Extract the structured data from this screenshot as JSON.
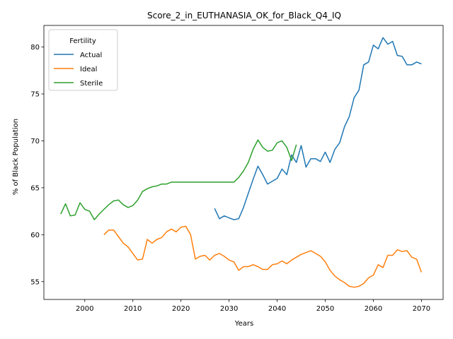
{
  "chart_data": {
    "type": "line",
    "title": "Score_2_in_EUTHANASIA_OK_for_Black_Q4_IQ",
    "xlabel": "Years",
    "ylabel": "% of Black Population",
    "xlim": [
      1991.5,
      2074.5
    ],
    "ylim": [
      53.1,
      82.3
    ],
    "x_ticks": [
      2000,
      2010,
      2020,
      2030,
      2040,
      2050,
      2060,
      2070
    ],
    "y_ticks": [
      55,
      60,
      65,
      70,
      75,
      80
    ],
    "grid": false,
    "legend": {
      "title": "Fertility",
      "position": "top-left"
    },
    "series": [
      {
        "name": "Actual",
        "color": "#1f77b4",
        "x": [
          2027,
          2028,
          2029,
          2030,
          2031,
          2032,
          2033,
          2034,
          2035,
          2036,
          2037,
          2038,
          2039,
          2040,
          2041,
          2042,
          2043,
          2044,
          2045,
          2046,
          2047,
          2048,
          2049,
          2050,
          2051,
          2052,
          2053,
          2054,
          2055,
          2056,
          2057,
          2058,
          2059,
          2060,
          2061,
          2062,
          2063,
          2064,
          2065,
          2066,
          2067,
          2068,
          2069,
          2070
        ],
        "values": [
          62.8,
          61.7,
          62.0,
          61.8,
          61.6,
          61.7,
          62.9,
          64.4,
          65.9,
          67.3,
          66.4,
          65.4,
          65.7,
          66.0,
          67.0,
          66.4,
          68.5,
          67.7,
          69.5,
          67.2,
          68.1,
          68.1,
          67.8,
          68.8,
          67.7,
          69.1,
          69.8,
          71.5,
          72.6,
          74.6,
          75.4,
          78.1,
          78.4,
          80.2,
          79.8,
          81.0,
          80.3,
          80.6,
          79.1,
          79.0,
          78.1,
          78.1,
          78.4,
          78.2
        ]
      },
      {
        "name": "Ideal",
        "color": "#ff7f0e",
        "x": [
          2004,
          2005,
          2006,
          2007,
          2008,
          2009,
          2010,
          2011,
          2012,
          2013,
          2014,
          2015,
          2016,
          2017,
          2018,
          2019,
          2020,
          2021,
          2022,
          2023,
          2024,
          2025,
          2026,
          2027,
          2028,
          2029,
          2030,
          2031,
          2032,
          2033,
          2034,
          2035,
          2036,
          2037,
          2038,
          2039,
          2040,
          2041,
          2042,
          2043,
          2044,
          2045,
          2046,
          2047,
          2048,
          2049,
          2050,
          2051,
          2052,
          2053,
          2054,
          2055,
          2056,
          2057,
          2058,
          2059,
          2060,
          2061,
          2062,
          2063,
          2064,
          2065,
          2066,
          2067,
          2068,
          2069,
          2070
        ],
        "values": [
          60.0,
          60.5,
          60.5,
          59.8,
          59.1,
          58.7,
          58.0,
          57.3,
          57.4,
          59.5,
          59.1,
          59.5,
          59.7,
          60.3,
          60.6,
          60.3,
          60.8,
          60.9,
          60.0,
          57.4,
          57.7,
          57.8,
          57.3,
          57.8,
          58.0,
          57.7,
          57.3,
          57.1,
          56.2,
          56.6,
          56.6,
          56.8,
          56.6,
          56.3,
          56.3,
          56.8,
          56.9,
          57.2,
          56.9,
          57.3,
          57.6,
          57.9,
          58.1,
          58.3,
          58.0,
          57.7,
          57.1,
          56.2,
          55.6,
          55.2,
          54.9,
          54.5,
          54.4,
          54.5,
          54.8,
          55.4,
          55.7,
          56.8,
          56.5,
          57.8,
          57.8,
          58.4,
          58.2,
          58.3,
          57.6,
          57.4,
          56.0
        ]
      },
      {
        "name": "Sterile",
        "color": "#2ca02c",
        "x": [
          1995,
          1996,
          1997,
          1998,
          1999,
          2000,
          2001,
          2002,
          2003,
          2004,
          2005,
          2006,
          2007,
          2008,
          2009,
          2010,
          2011,
          2012,
          2013,
          2014,
          2015,
          2016,
          2017,
          2018,
          2019,
          2020,
          2021,
          2022,
          2023,
          2024,
          2025,
          2026,
          2027,
          2028,
          2029,
          2030,
          2031,
          2032,
          2033,
          2034,
          2035,
          2036,
          2037,
          2038,
          2039,
          2040,
          2041,
          2042,
          2043,
          2044
        ],
        "values": [
          62.2,
          63.3,
          62.0,
          62.1,
          63.4,
          62.7,
          62.5,
          61.6,
          62.2,
          62.7,
          63.2,
          63.6,
          63.7,
          63.2,
          62.9,
          63.1,
          63.7,
          64.6,
          64.9,
          65.1,
          65.2,
          65.4,
          65.4,
          65.6,
          65.6,
          65.6,
          65.6,
          65.6,
          65.6,
          65.6,
          65.6,
          65.6,
          65.6,
          65.6,
          65.6,
          65.6,
          65.6,
          66.1,
          66.8,
          67.7,
          69.1,
          70.1,
          69.3,
          68.9,
          69.0,
          69.8,
          70.0,
          69.3,
          67.9,
          69.6
        ]
      }
    ]
  }
}
